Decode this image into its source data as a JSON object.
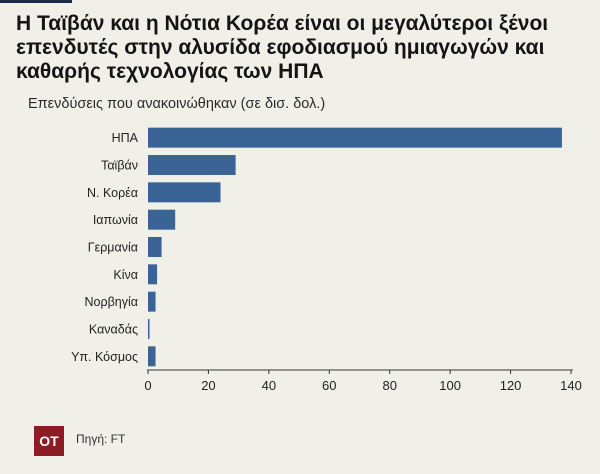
{
  "chart_data": {
    "type": "bar",
    "orientation": "horizontal",
    "title": "Η Ταϊβάν και η Νότια Κορέα είναι οι μεγαλύτεροι ξένοι επενδυτές στην αλυσίδα εφοδιασμού ημιαγωγών και καθαρής τεχνολογίας των ΗΠΑ",
    "subtitle": "Επενδύσεις που ανακοινώθηκαν (σε δισ. δολ.)",
    "categories": [
      "ΗΠΑ",
      "Ταϊβάν",
      "Ν. Κορέα",
      "Ιαπωνία",
      "Γερμανία",
      "Κίνα",
      "Νορβηγία",
      "Καναδάς",
      "Υπ. Κόσμος"
    ],
    "values": [
      137,
      29,
      24,
      9,
      4.5,
      3,
      2.5,
      0.5,
      2.5
    ],
    "xlim": [
      0,
      140
    ],
    "xticks": [
      0,
      20,
      40,
      60,
      80,
      100,
      120,
      140
    ],
    "bar_color": "#3a6496",
    "grid": false
  },
  "footer": {
    "logo_text": "OT",
    "source": "Πηγή: FT"
  }
}
